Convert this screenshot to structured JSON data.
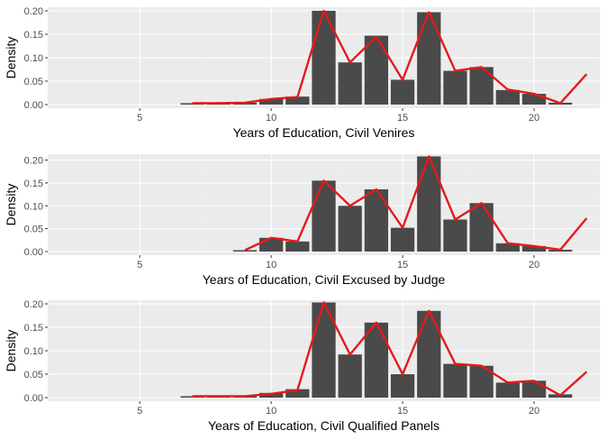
{
  "colors": {
    "panel_background": "#ebebeb",
    "gridline_major": "#ffffff",
    "gridline_minor": "#f2f2f2",
    "bar_fill": "#4a4a4a",
    "line_color": "#e41a1c",
    "tick_text": "#4d4d4d"
  },
  "chart_data": [
    {
      "type": "bar",
      "overlay": "line",
      "xlabel": "Years of Education, Civil Venires",
      "ylabel": "Density",
      "xlim": [
        1.5,
        22.5
      ],
      "ylim": [
        0,
        0.2
      ],
      "xticks": [
        5,
        10,
        15,
        20
      ],
      "yticks": [
        0,
        0.05,
        0.1,
        0.15,
        0.2
      ],
      "xtick_labels": [
        "5",
        "10",
        "15",
        "20"
      ],
      "ytick_labels": [
        "0.00",
        "0.05",
        "0.10",
        "0.15",
        "0.20"
      ],
      "grid": true,
      "bars": {
        "x": [
          7,
          8,
          9,
          10,
          11,
          12,
          13,
          14,
          15,
          16,
          17,
          18,
          19,
          20,
          21
        ],
        "values": [
          0.003,
          0.003,
          0.004,
          0.012,
          0.017,
          0.2,
          0.09,
          0.147,
          0.053,
          0.197,
          0.072,
          0.08,
          0.031,
          0.023,
          0.004
        ]
      },
      "line": {
        "x": [
          7,
          8,
          9,
          10,
          11,
          12,
          13,
          14,
          15,
          16,
          17,
          18,
          19,
          20,
          21,
          22
        ],
        "values": [
          0.003,
          0.003,
          0.004,
          0.012,
          0.016,
          0.2,
          0.09,
          0.145,
          0.053,
          0.197,
          0.072,
          0.08,
          0.032,
          0.023,
          0.003,
          0.065
        ]
      }
    },
    {
      "type": "bar",
      "overlay": "line",
      "xlabel": "Years of Education, Civil Excused by Judge",
      "ylabel": "Density",
      "xlim": [
        1.5,
        22.5
      ],
      "ylim": [
        0,
        0.205
      ],
      "xticks": [
        5,
        10,
        15,
        20
      ],
      "yticks": [
        0,
        0.05,
        0.1,
        0.15,
        0.2
      ],
      "xtick_labels": [
        "5",
        "10",
        "15",
        "20"
      ],
      "ytick_labels": [
        "0.00",
        "0.05",
        "0.10",
        "0.15",
        "0.20"
      ],
      "grid": true,
      "bars": {
        "x": [
          9,
          10,
          11,
          12,
          13,
          14,
          15,
          16,
          17,
          18,
          19,
          20,
          21
        ],
        "values": [
          0.003,
          0.03,
          0.022,
          0.155,
          0.1,
          0.136,
          0.052,
          0.208,
          0.07,
          0.106,
          0.018,
          0.012,
          0.004
        ]
      },
      "line": {
        "x": [
          9,
          10,
          11,
          12,
          13,
          14,
          15,
          16,
          17,
          18,
          19,
          20,
          21,
          22
        ],
        "values": [
          0.003,
          0.03,
          0.022,
          0.155,
          0.1,
          0.136,
          0.052,
          0.208,
          0.07,
          0.106,
          0.018,
          0.012,
          0.004,
          0.073
        ]
      }
    },
    {
      "type": "bar",
      "overlay": "line",
      "xlabel": "Years of Education, Civil Qualified Panels",
      "ylabel": "Density",
      "xlim": [
        1.5,
        22.5
      ],
      "ylim": [
        0,
        0.2
      ],
      "xticks": [
        5,
        10,
        15,
        20
      ],
      "yticks": [
        0,
        0.05,
        0.1,
        0.15,
        0.2
      ],
      "xtick_labels": [
        "5",
        "10",
        "15",
        "20"
      ],
      "ytick_labels": [
        "0.00",
        "0.05",
        "0.10",
        "0.15",
        "0.20"
      ],
      "grid": true,
      "bars": {
        "x": [
          7,
          8,
          9,
          10,
          11,
          12,
          13,
          14,
          15,
          16,
          17,
          18,
          19,
          20,
          21
        ],
        "values": [
          0.003,
          0.003,
          0.004,
          0.01,
          0.018,
          0.203,
          0.092,
          0.16,
          0.05,
          0.185,
          0.072,
          0.068,
          0.032,
          0.036,
          0.007
        ]
      },
      "line": {
        "x": [
          7,
          8,
          9,
          10,
          11,
          12,
          13,
          14,
          15,
          16,
          17,
          18,
          19,
          20,
          21,
          22
        ],
        "values": [
          0.003,
          0.003,
          0.003,
          0.008,
          0.016,
          0.203,
          0.092,
          0.16,
          0.05,
          0.185,
          0.072,
          0.068,
          0.032,
          0.036,
          0.005,
          0.055
        ]
      }
    }
  ]
}
